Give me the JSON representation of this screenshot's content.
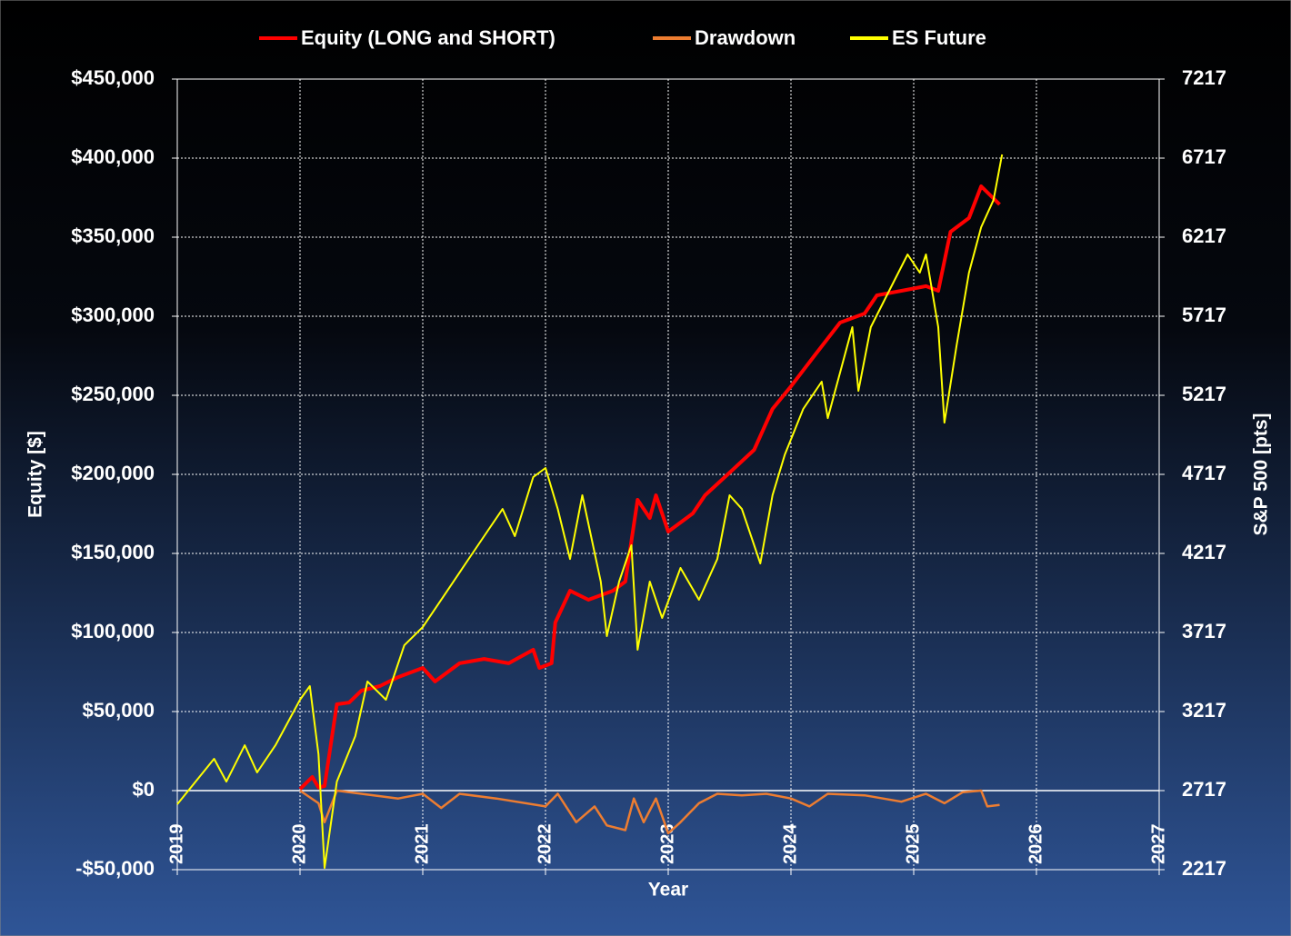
{
  "chart_data": {
    "type": "line",
    "x_label": "Year",
    "y_label": "Equity [$]",
    "y2_label": "S&P 500 [pts]",
    "xlim": [
      2019,
      2027
    ],
    "xticks": [
      2019,
      2020,
      2021,
      2022,
      2023,
      2024,
      2025,
      2026,
      2027
    ],
    "ylim": [
      -50000,
      450000
    ],
    "yticks": [
      {
        "value": -50000,
        "label": "-$50,000"
      },
      {
        "value": 0,
        "label": "$0"
      },
      {
        "value": 50000,
        "label": "$50,000"
      },
      {
        "value": 100000,
        "label": "$100,000"
      },
      {
        "value": 150000,
        "label": "$150,000"
      },
      {
        "value": 200000,
        "label": "$200,000"
      },
      {
        "value": 250000,
        "label": "$250,000"
      },
      {
        "value": 300000,
        "label": "$300,000"
      },
      {
        "value": 350000,
        "label": "$350,000"
      },
      {
        "value": 400000,
        "label": "$400,000"
      },
      {
        "value": 450000,
        "label": "$450,000"
      }
    ],
    "y2lim": [
      2217,
      7217
    ],
    "y2ticks": [
      2217,
      2717,
      3217,
      3717,
      4217,
      4717,
      5217,
      5717,
      6217,
      6717,
      7217
    ],
    "grid": true,
    "legend": "top",
    "series": [
      {
        "name": "Equity (LONG and SHORT)",
        "color": "#ff0000",
        "axis": "y",
        "x": [
          2020.0,
          2020.1,
          2020.15,
          2020.2,
          2020.3,
          2020.4,
          2020.5,
          2020.65,
          2020.8,
          2021.0,
          2021.1,
          2021.3,
          2021.5,
          2021.7,
          2021.9,
          2021.95,
          2022.05,
          2022.08,
          2022.2,
          2022.35,
          2022.55,
          2022.65,
          2022.75,
          2022.85,
          2022.9,
          2023.0,
          2023.2,
          2023.3,
          2023.5,
          2023.7,
          2023.85,
          2024.0,
          2024.2,
          2024.4,
          2024.6,
          2024.7,
          2024.9,
          2025.1,
          2025.2,
          2025.3,
          2025.45,
          2025.55,
          2025.7
        ],
        "values": [
          1000,
          8600,
          2000,
          2900,
          54600,
          55700,
          63200,
          66100,
          71800,
          77600,
          69000,
          80500,
          83300,
          80500,
          89100,
          77600,
          80500,
          106300,
          126400,
          120700,
          126400,
          132200,
          183900,
          172400,
          186800,
          163800,
          175300,
          186800,
          201100,
          215500,
          241400,
          255700,
          275900,
          296000,
          301700,
          313200,
          316100,
          319000,
          316100,
          353400,
          362100,
          382200,
          370700
        ]
      },
      {
        "name": "Drawdown",
        "color": "#ed7d31",
        "axis": "y",
        "x": [
          2020.0,
          2020.15,
          2020.2,
          2020.3,
          2020.6,
          2020.8,
          2021.0,
          2021.15,
          2021.3,
          2021.6,
          2022.0,
          2022.1,
          2022.25,
          2022.4,
          2022.5,
          2022.65,
          2022.72,
          2022.8,
          2022.9,
          2023.0,
          2023.1,
          2023.25,
          2023.4,
          2023.6,
          2023.8,
          2024.0,
          2024.15,
          2024.3,
          2024.6,
          2024.9,
          2025.1,
          2025.25,
          2025.4,
          2025.55,
          2025.6,
          2025.7
        ],
        "values": [
          0,
          -8000,
          -20000,
          0,
          -3000,
          -5000,
          -2000,
          -11000,
          -2000,
          -5000,
          -10000,
          -2000,
          -20000,
          -10000,
          -22000,
          -25000,
          -5000,
          -20000,
          -5000,
          -27000,
          -20000,
          -8000,
          -2000,
          -3000,
          -2000,
          -5000,
          -10000,
          -2000,
          -3000,
          -7000,
          -2000,
          -8000,
          -1000,
          0,
          -10000,
          -9000
        ]
      },
      {
        "name": "ES Future",
        "color": "#ffff00",
        "axis": "y2",
        "x": [
          2019.0,
          2019.3,
          2019.4,
          2019.55,
          2019.65,
          2019.8,
          2020.0,
          2020.08,
          2020.15,
          2020.2,
          2020.3,
          2020.45,
          2020.55,
          2020.7,
          2020.85,
          2021.0,
          2021.2,
          2021.35,
          2021.5,
          2021.65,
          2021.75,
          2021.9,
          2022.0,
          2022.1,
          2022.2,
          2022.3,
          2022.45,
          2022.5,
          2022.6,
          2022.7,
          2022.75,
          2022.85,
          2022.95,
          2023.1,
          2023.25,
          2023.4,
          2023.5,
          2023.6,
          2023.75,
          2023.85,
          2023.95,
          2024.1,
          2024.25,
          2024.3,
          2024.5,
          2024.55,
          2024.65,
          2024.8,
          2024.95,
          2025.05,
          2025.1,
          2025.2,
          2025.25,
          2025.35,
          2025.45,
          2025.55,
          2025.65,
          2025.72
        ],
        "values": [
          2631,
          2918,
          2774,
          3004,
          2832,
          3004,
          3292,
          3378,
          2947,
          2228,
          2774,
          3062,
          3407,
          3292,
          3636,
          3751,
          3981,
          4154,
          4326,
          4498,
          4326,
          4700,
          4757,
          4498,
          4182,
          4585,
          4039,
          3694,
          4039,
          4269,
          3608,
          4039,
          3809,
          4125,
          3924,
          4182,
          4585,
          4498,
          4154,
          4585,
          4843,
          5131,
          5303,
          5073,
          5648,
          5245,
          5648,
          5878,
          6108,
          5993,
          6108,
          5648,
          5044,
          5533,
          5993,
          6280,
          6452,
          6740
        ]
      }
    ]
  }
}
